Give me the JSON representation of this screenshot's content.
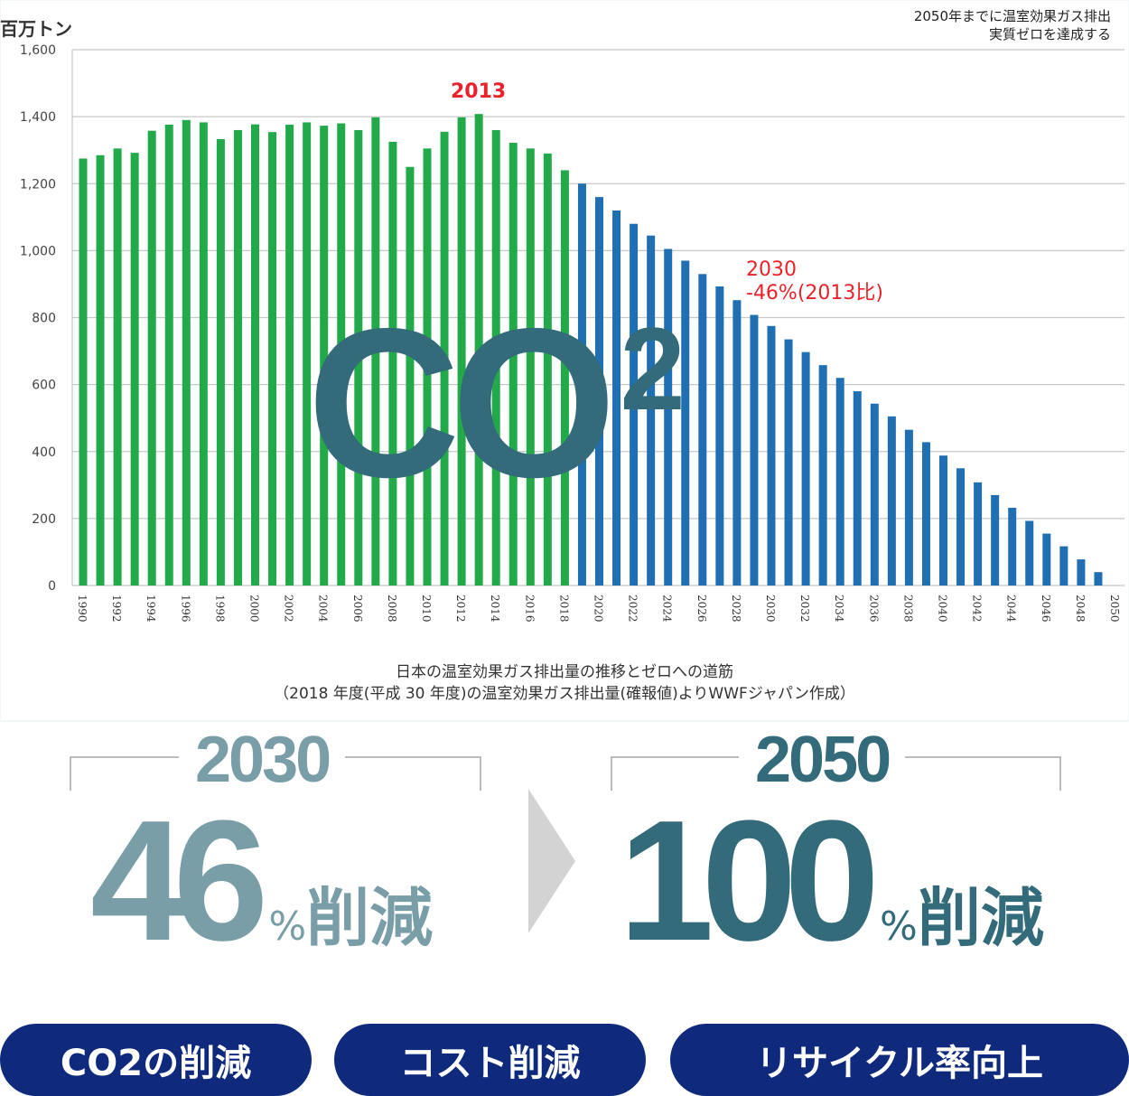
{
  "header": {
    "unit": "百万トン",
    "note_line1": "2050年までに温室効果ガス排出",
    "note_line2": "実質ゼロを達成する"
  },
  "chart_data": {
    "type": "bar",
    "ylabel": "百万トン",
    "ylim": [
      0,
      1600
    ],
    "yticks": [
      "0",
      "200",
      "400",
      "600",
      "800",
      "1,000",
      "1,200",
      "1,400",
      "1,600"
    ],
    "grid": true,
    "x": [
      1990,
      1991,
      1992,
      1993,
      1994,
      1995,
      1996,
      1997,
      1998,
      1999,
      2000,
      2001,
      2002,
      2003,
      2004,
      2005,
      2006,
      2007,
      2008,
      2009,
      2010,
      2011,
      2012,
      2013,
      2014,
      2015,
      2016,
      2017,
      2018,
      2019,
      2020,
      2021,
      2022,
      2023,
      2024,
      2025,
      2026,
      2027,
      2028,
      2029,
      2030,
      2031,
      2032,
      2033,
      2034,
      2035,
      2036,
      2037,
      2038,
      2039,
      2040,
      2041,
      2042,
      2043,
      2044,
      2045,
      2046,
      2047,
      2048,
      2049,
      2050
    ],
    "xtick_labels": [
      "1990",
      "1992",
      "1994",
      "1996",
      "1998",
      "2000",
      "2002",
      "2004",
      "2006",
      "2008",
      "2010",
      "2012",
      "2014",
      "2016",
      "2018",
      "2020",
      "2022",
      "2024",
      "2026",
      "2028",
      "2030",
      "2032",
      "2034",
      "2036",
      "2038",
      "2040",
      "2042",
      "2044",
      "2046",
      "2048",
      "2050"
    ],
    "series": [
      {
        "color": "#22a94a",
        "values": [
          1275,
          1285,
          1305,
          1292,
          1358,
          1376,
          1390,
          1383,
          1333,
          1360,
          1377,
          1354,
          1376,
          1383,
          1373,
          1380,
          1360,
          1398,
          1325,
          1250,
          1305,
          1355,
          1398,
          1408,
          1360,
          1322,
          1305,
          1290,
          1240,
          null,
          null,
          null,
          null,
          null,
          null,
          null,
          null,
          null,
          null,
          null,
          null,
          null,
          null,
          null,
          null,
          null,
          null,
          null,
          null,
          null,
          null,
          null,
          null,
          null,
          null,
          null,
          null,
          null,
          null,
          null,
          null
        ]
      },
      {
        "color": "#1f6fb2",
        "values": [
          null,
          null,
          null,
          null,
          null,
          null,
          null,
          null,
          null,
          null,
          null,
          null,
          null,
          null,
          null,
          null,
          null,
          null,
          null,
          null,
          null,
          null,
          null,
          null,
          null,
          null,
          null,
          null,
          null,
          1200,
          1160,
          1120,
          1080,
          1045,
          1005,
          970,
          930,
          893,
          852,
          808,
          775,
          735,
          697,
          658,
          620,
          580,
          543,
          505,
          465,
          428,
          388,
          350,
          308,
          270,
          232,
          193,
          155,
          117,
          78,
          40,
          0
        ]
      }
    ],
    "annotations": {
      "peak": "2013",
      "target_line1": "2030",
      "target_line2": "-46%(2013比)"
    },
    "overlay_text": "CO",
    "overlay_sup": "2",
    "caption_line1": "日本の温室効果ガス排出量の推移とゼロへの道筋",
    "caption_line2": "（2018 年度(平成 30 年度)の温室効果ガス排出量(確報値)よりWWFジャパン作成）"
  },
  "targets": [
    {
      "year": "2030",
      "value": "46",
      "pct": "%",
      "label": "削減",
      "color": "#7a9ea8"
    },
    {
      "year": "2050",
      "value": "100",
      "pct": "%",
      "label": "削減",
      "color": "#336b7b"
    }
  ],
  "pills": [
    "CO2の削減",
    "コスト削減",
    "リサイクル率向上"
  ]
}
